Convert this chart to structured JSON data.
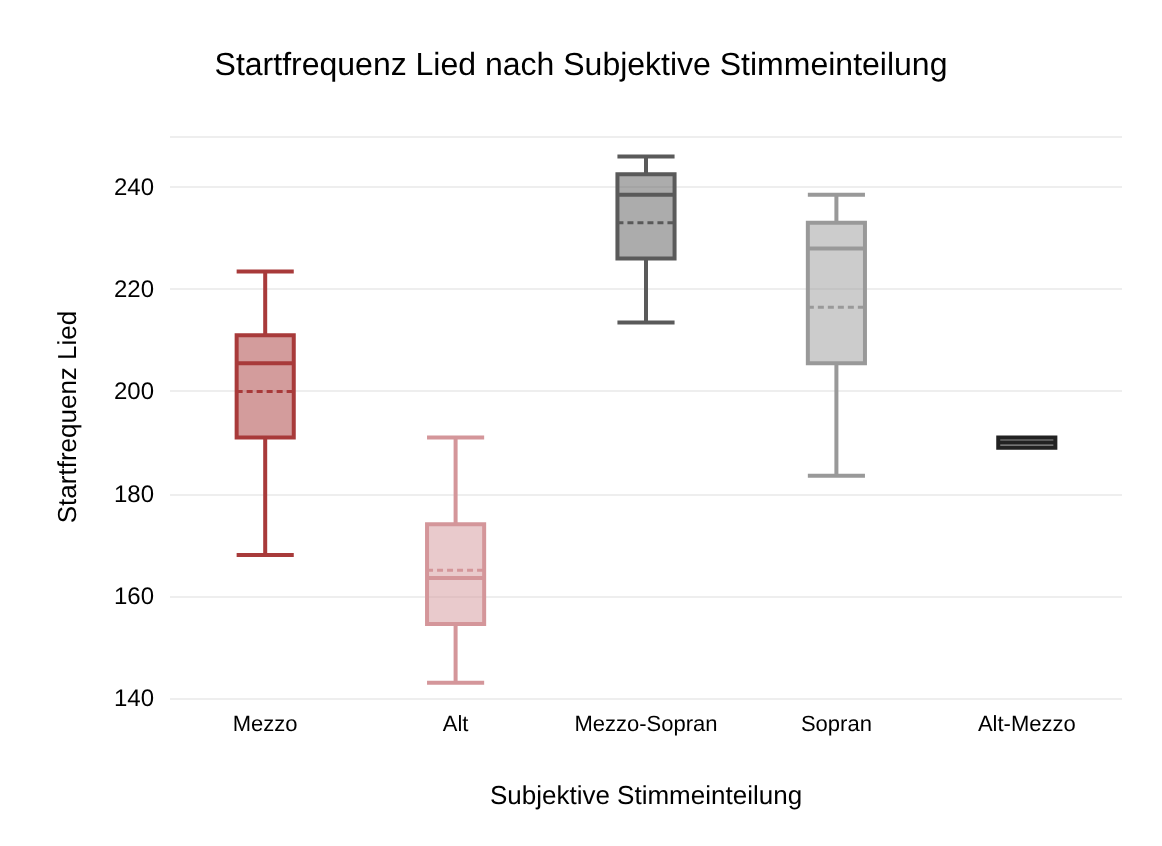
{
  "chart_data": {
    "type": "box",
    "title": "Startfrequenz Lied nach Subjektive Stimmeinteilung",
    "xlabel": "Subjektive Stimmeinteilung",
    "ylabel": "Startfrequenz Lied",
    "categories": [
      "Mezzo",
      "Alt",
      "Mezzo-Sopran",
      "Sopran",
      "Alt-Mezzo"
    ],
    "colors": [
      "#a83a3a",
      "#d4969a",
      "#5a5a5a",
      "#999999",
      "#222222"
    ],
    "boxes": [
      {
        "low": 168,
        "q1": 191,
        "median": 205.5,
        "q3": 211,
        "high": 223.5,
        "mean": 200
      },
      {
        "low": 143,
        "q1": 154.5,
        "median": 163.5,
        "q3": 174,
        "high": 191,
        "mean": 165
      },
      {
        "low": 213.5,
        "q1": 226,
        "median": 238.5,
        "q3": 242.5,
        "high": 246,
        "mean": 233
      },
      {
        "low": 183.5,
        "q1": 205.5,
        "median": 228,
        "q3": 233,
        "high": 238.5,
        "mean": 216.5
      },
      {
        "low": 189,
        "q1": 189,
        "median": 190,
        "q3": 191,
        "high": 191,
        "mean": 190
      }
    ],
    "ylim": [
      140,
      250
    ],
    "yticks": [
      140,
      160,
      180,
      200,
      220,
      240,
      {
        "value": 250,
        "label": null
      }
    ],
    "grid": "y"
  }
}
